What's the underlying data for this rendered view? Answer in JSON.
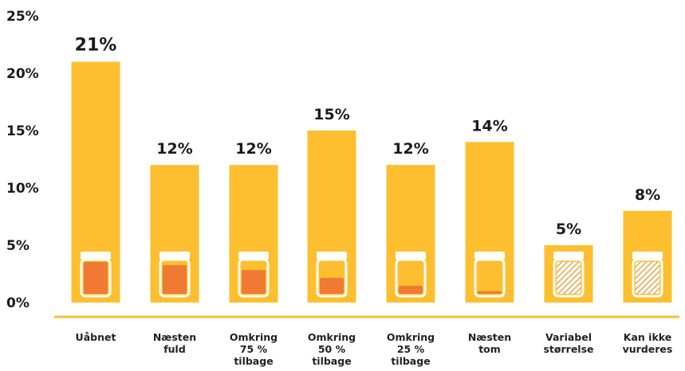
{
  "chart_data": {
    "type": "bar",
    "title": "",
    "xlabel": "",
    "ylabel": "",
    "ylim": [
      0,
      25
    ],
    "yticks": [
      "0%",
      "5%",
      "10%",
      "15%",
      "20%",
      "25%"
    ],
    "categories": [
      "Uåbnet",
      "Næsten fuld",
      "Omkring 75 % tilbage",
      "Omkring 50 % tilbage",
      "Omkring 25 % tilbage",
      "Næsten tom",
      "Variabel størrelse",
      "Kan ikke vurderes"
    ],
    "category_lines": [
      [
        "Uåbnet"
      ],
      [
        "Næsten",
        "fuld"
      ],
      [
        "Omkring",
        "75 %",
        "tilbage"
      ],
      [
        "Omkring",
        "50 %",
        "tilbage"
      ],
      [
        "Omkring",
        "25 %",
        "tilbage"
      ],
      [
        "Næsten",
        "tom"
      ],
      [
        "Variabel",
        "størrelse"
      ],
      [
        "Kan ikke",
        "vurderes"
      ]
    ],
    "values": [
      21,
      12,
      12,
      15,
      12,
      14,
      5,
      8
    ],
    "value_labels": [
      "21%",
      "12%",
      "12%",
      "15%",
      "12%",
      "14%",
      "5%",
      "8%"
    ],
    "jar_fill": [
      1.0,
      0.9,
      0.75,
      0.5,
      0.25,
      0.08,
      "hatched",
      "hatched"
    ],
    "grid": false,
    "legend": "none",
    "colors": {
      "bar": "#FDBF2F",
      "jar_fill": "#F07A33",
      "jar": "#FFFFFF",
      "hatch": "#E8A64A",
      "axis_line": "#FDBF2F",
      "text": "#1a1a1a"
    }
  }
}
